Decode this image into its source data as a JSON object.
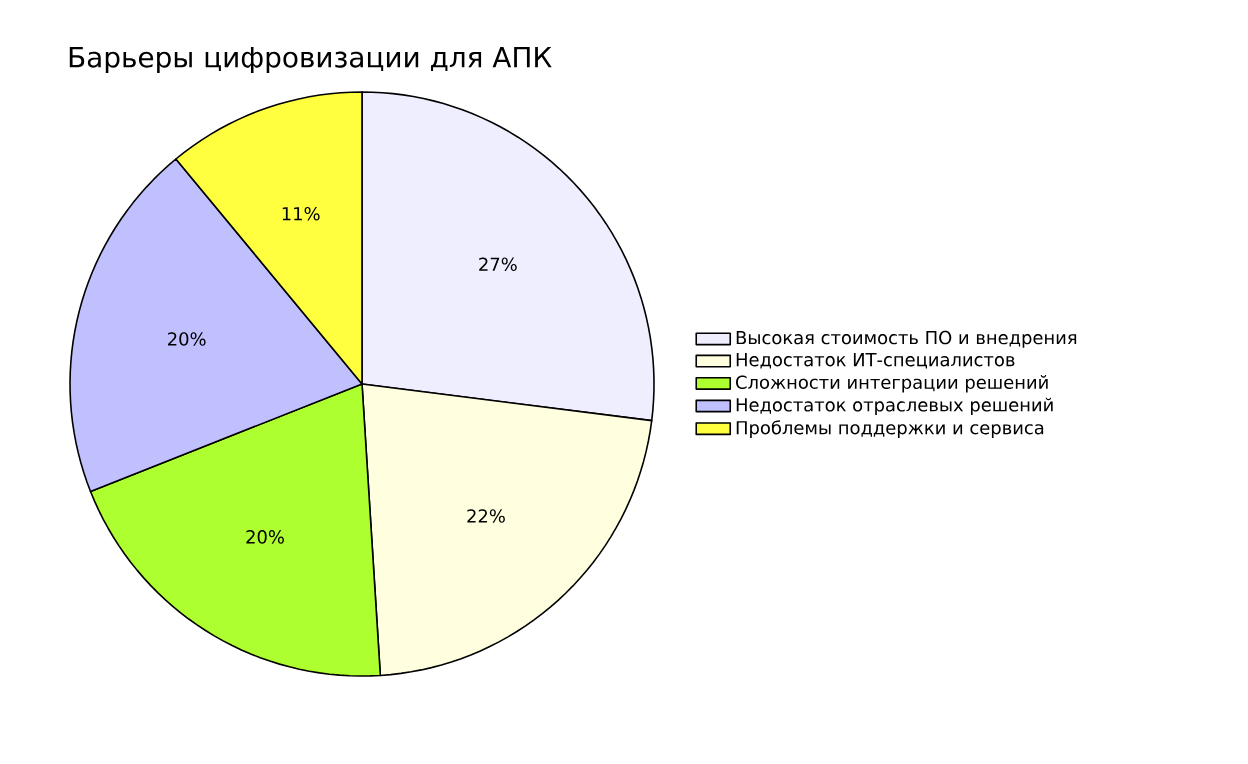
{
  "chart_data": {
    "type": "pie",
    "title": "Барьеры цифровизации для АПК",
    "categories": [
      "Высокая стоимость ПО и внедрения",
      "Недостаток ИТ-специалистов",
      "Сложности интеграции решений",
      "Недостаток отраслевых решений",
      "Проблемы поддержки и сервиса"
    ],
    "values": [
      27,
      22,
      20,
      20,
      11
    ],
    "value_labels": [
      "27%",
      "22%",
      "20%",
      "20%",
      "11%"
    ],
    "colors": [
      "#eeeeff",
      "#ffffe0",
      "#adff2f",
      "#c0c0ff",
      "#ffff40"
    ],
    "legend": "right"
  }
}
